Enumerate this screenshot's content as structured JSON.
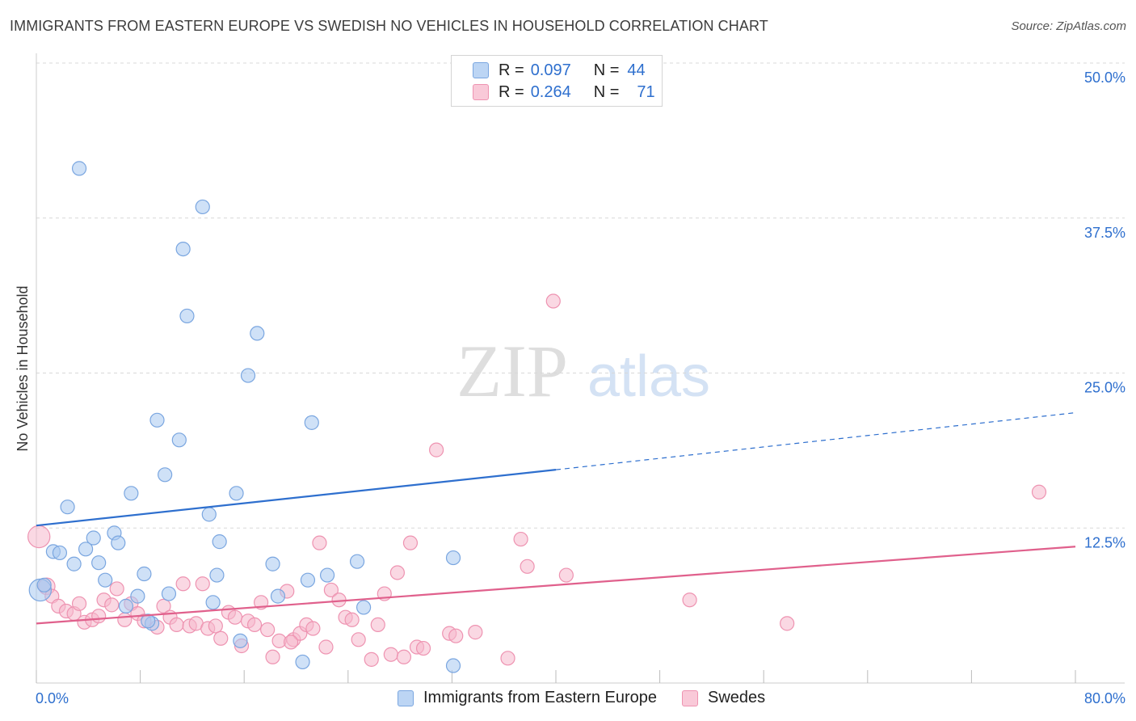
{
  "title": "IMMIGRANTS FROM EASTERN EUROPE VS SWEDISH NO VEHICLES IN HOUSEHOLD CORRELATION CHART",
  "source": "Source: ZipAtlas.com",
  "watermark": {
    "zip": "ZIP",
    "atlas": "atlas"
  },
  "legend": {
    "rows": [
      {
        "r_label": "R =",
        "r_value": "0.097",
        "n_label": "N =",
        "n_value": "44"
      },
      {
        "r_label": "R =",
        "r_value": "0.264",
        "n_label": "N =",
        "n_value": "71"
      }
    ]
  },
  "colors": {
    "blue_fill": "#a8c8f0",
    "blue_stroke": "#7aa6e0",
    "blue_line": "#2e6fce",
    "pink_fill": "#f6b8cc",
    "pink_stroke": "#ee93b1",
    "pink_line": "#e0608c",
    "axis_text": "#2e6fce",
    "grid": "#d8d8d8"
  },
  "chart_data": {
    "type": "scatter",
    "title": "IMMIGRANTS FROM EASTERN EUROPE VS SWEDISH NO VEHICLES IN HOUSEHOLD CORRELATION CHART",
    "xlabel": "",
    "ylabel": "No Vehicles in Household",
    "xlim": [
      0,
      80
    ],
    "ylim": [
      0,
      50
    ],
    "x_tick_labels": [
      "0.0%",
      "80.0%"
    ],
    "y_ticks": [
      12.5,
      25,
      37.5,
      50
    ],
    "y_tick_labels": [
      "12.5%",
      "25.0%",
      "37.5%",
      "50.0%"
    ],
    "grid": true,
    "legend_position": "top-center",
    "series": [
      {
        "name": "Immigrants from Eastern Europe",
        "r": 0.097,
        "n": 44,
        "trend": {
          "x0": 0,
          "y0": 12.7,
          "x1": 40,
          "y1": 17.2,
          "dashed_to_x": 80,
          "dashed_to_y": 21.8
        },
        "points": [
          [
            0.3,
            7.5,
            1.6
          ],
          [
            0.6,
            7.9,
            1.0
          ],
          [
            3.3,
            41.5,
            1
          ],
          [
            12.8,
            38.4,
            1
          ],
          [
            11.3,
            35.0,
            1
          ],
          [
            11.6,
            29.6,
            1
          ],
          [
            17.0,
            28.2,
            1
          ],
          [
            16.3,
            24.8,
            1
          ],
          [
            9.3,
            21.2,
            1
          ],
          [
            21.2,
            21.0,
            1
          ],
          [
            11.0,
            19.6,
            1
          ],
          [
            9.9,
            16.8,
            1
          ],
          [
            7.3,
            15.3,
            1
          ],
          [
            15.4,
            15.3,
            1
          ],
          [
            2.4,
            14.2,
            1
          ],
          [
            13.3,
            13.6,
            1
          ],
          [
            6.0,
            12.1,
            1
          ],
          [
            4.4,
            11.7,
            1
          ],
          [
            6.3,
            11.3,
            1
          ],
          [
            14.1,
            11.4,
            1
          ],
          [
            3.8,
            10.8,
            1
          ],
          [
            1.3,
            10.6,
            1
          ],
          [
            1.8,
            10.5,
            1
          ],
          [
            2.9,
            9.6,
            1
          ],
          [
            4.8,
            9.7,
            1
          ],
          [
            18.2,
            9.6,
            1
          ],
          [
            24.7,
            9.8,
            1
          ],
          [
            32.1,
            10.1,
            1
          ],
          [
            8.3,
            8.8,
            1
          ],
          [
            13.9,
            8.7,
            1
          ],
          [
            22.4,
            8.7,
            1
          ],
          [
            5.3,
            8.3,
            1
          ],
          [
            20.9,
            8.3,
            1
          ],
          [
            7.8,
            7.0,
            1
          ],
          [
            10.2,
            7.2,
            1
          ],
          [
            18.6,
            7.0,
            1
          ],
          [
            13.6,
            6.5,
            1
          ],
          [
            6.9,
            6.2,
            1
          ],
          [
            25.2,
            6.1,
            1
          ],
          [
            8.9,
            4.8,
            1
          ],
          [
            15.7,
            3.4,
            1
          ],
          [
            20.5,
            1.7,
            1
          ],
          [
            32.1,
            1.4,
            1
          ],
          [
            8.6,
            5.0,
            1
          ]
        ]
      },
      {
        "name": "Swedes",
        "r": 0.264,
        "n": 71,
        "trend": {
          "x0": 0,
          "y0": 4.8,
          "x1": 80,
          "y1": 11.0
        },
        "points": [
          [
            0.2,
            11.8,
            1.6
          ],
          [
            0.8,
            7.8,
            1.2
          ],
          [
            1.2,
            7.0,
            1
          ],
          [
            1.7,
            6.2,
            1
          ],
          [
            2.3,
            5.8,
            1
          ],
          [
            2.9,
            5.6,
            1
          ],
          [
            3.3,
            6.4,
            1
          ],
          [
            3.7,
            4.9,
            1
          ],
          [
            4.3,
            5.1,
            1
          ],
          [
            4.8,
            5.4,
            1
          ],
          [
            5.2,
            6.7,
            1
          ],
          [
            5.8,
            6.3,
            1
          ],
          [
            6.2,
            7.6,
            1
          ],
          [
            6.8,
            5.1,
            1
          ],
          [
            7.3,
            6.4,
            1
          ],
          [
            7.8,
            5.6,
            1
          ],
          [
            8.3,
            5.0,
            1
          ],
          [
            9.3,
            4.5,
            1
          ],
          [
            9.8,
            6.2,
            1
          ],
          [
            10.3,
            5.3,
            1
          ],
          [
            10.8,
            4.7,
            1
          ],
          [
            11.3,
            8.0,
            1
          ],
          [
            11.8,
            4.6,
            1
          ],
          [
            12.3,
            4.8,
            1
          ],
          [
            12.8,
            8.0,
            1
          ],
          [
            13.2,
            4.4,
            1
          ],
          [
            13.8,
            4.6,
            1
          ],
          [
            14.2,
            3.6,
            1
          ],
          [
            14.8,
            5.7,
            1
          ],
          [
            15.3,
            5.3,
            1
          ],
          [
            15.8,
            3.0,
            1
          ],
          [
            16.3,
            5.0,
            1
          ],
          [
            16.8,
            4.7,
            1
          ],
          [
            17.3,
            6.5,
            1
          ],
          [
            17.8,
            4.3,
            1
          ],
          [
            18.2,
            2.1,
            1
          ],
          [
            18.7,
            3.4,
            1
          ],
          [
            19.3,
            7.4,
            1
          ],
          [
            19.8,
            3.5,
            1
          ],
          [
            20.3,
            4.0,
            1
          ],
          [
            20.8,
            4.7,
            1
          ],
          [
            21.3,
            4.4,
            1
          ],
          [
            21.8,
            11.3,
            1
          ],
          [
            22.3,
            2.9,
            1
          ],
          [
            22.7,
            7.5,
            1
          ],
          [
            23.3,
            6.7,
            1
          ],
          [
            23.8,
            5.3,
            1
          ],
          [
            24.3,
            5.1,
            1
          ],
          [
            24.8,
            3.5,
            1
          ],
          [
            25.8,
            1.9,
            1
          ],
          [
            26.3,
            4.7,
            1
          ],
          [
            26.8,
            7.2,
            1
          ],
          [
            27.3,
            2.3,
            1
          ],
          [
            27.8,
            8.9,
            1
          ],
          [
            28.3,
            2.1,
            1
          ],
          [
            28.8,
            11.3,
            1
          ],
          [
            29.3,
            2.9,
            1
          ],
          [
            29.8,
            2.8,
            1
          ],
          [
            30.8,
            18.8,
            1
          ],
          [
            31.8,
            4.0,
            1
          ],
          [
            32.3,
            3.8,
            1
          ],
          [
            33.8,
            4.1,
            1
          ],
          [
            36.3,
            2.0,
            1
          ],
          [
            37.3,
            11.6,
            1
          ],
          [
            37.8,
            9.4,
            1
          ],
          [
            39.8,
            30.8,
            1
          ],
          [
            40.8,
            8.7,
            1
          ],
          [
            50.3,
            6.7,
            1
          ],
          [
            57.8,
            4.8,
            1
          ],
          [
            77.2,
            15.4,
            1
          ],
          [
            19.6,
            3.3,
            1
          ]
        ]
      }
    ]
  },
  "bottom_legend": [
    {
      "label": "Immigrants from Eastern Europe"
    },
    {
      "label": "Swedes"
    }
  ]
}
